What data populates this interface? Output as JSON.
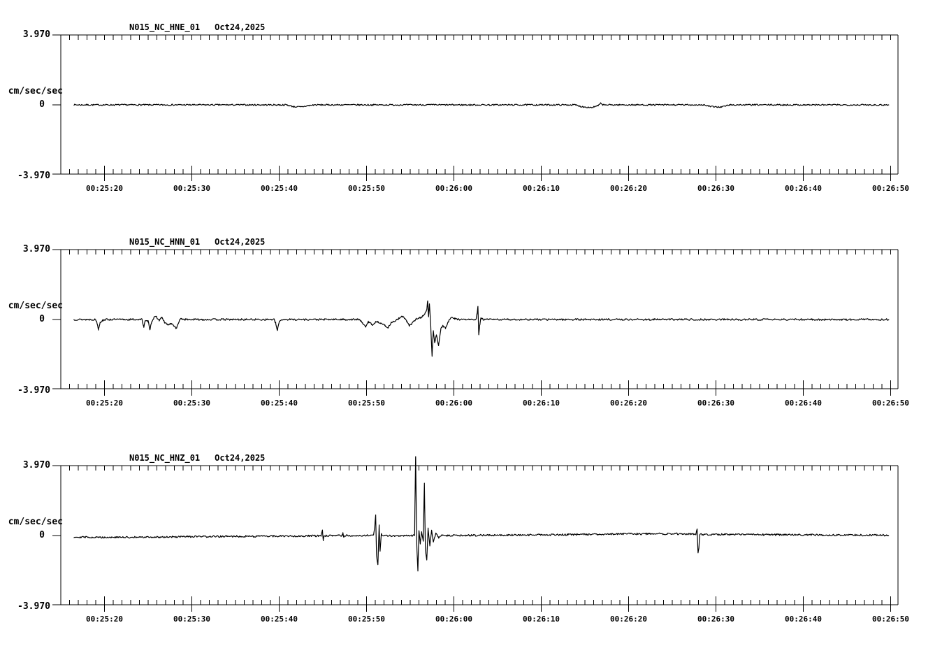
{
  "app": {
    "background": "#ffffff",
    "ink": "#000000"
  },
  "chart_data": {
    "type": "line",
    "kind": "seismogram-strip-chart",
    "station": "N015_NC",
    "date": "Oct24,2025",
    "ylabel": "cm/sec/sec",
    "ylim": [
      -3.97,
      3.97
    ],
    "y_tick_labels": {
      "max": "3.970",
      "zero": "0",
      "min": "-3.970"
    },
    "x_tick_labels": [
      "00:25:20",
      "00:25:30",
      "00:25:40",
      "00:25:50",
      "00:26:00",
      "00:26:10",
      "00:26:20",
      "00:26:30",
      "00:26:40",
      "00:26:50"
    ],
    "x_axis": {
      "start_time": "00:25:15",
      "end_time": "00:26:51",
      "minor_tick_sec": 1,
      "major_tick_sec": 10
    },
    "legend": "none",
    "grid": "off",
    "panels": [
      {
        "channel": "N015_NC_HNE_01",
        "date": "Oct24,2025",
        "units": "cm/sec/sec",
        "noise_amp": 0.04,
        "seed": 7,
        "trace_breakpoints": [
          [
            1.5,
            0
          ],
          [
            25.9,
            0
          ],
          [
            26.6,
            -0.1
          ],
          [
            27.5,
            -0.12
          ],
          [
            28.3,
            -0.05
          ],
          [
            29.0,
            0
          ],
          [
            58.9,
            0
          ],
          [
            59.6,
            -0.1
          ],
          [
            60.8,
            -0.15
          ],
          [
            61.5,
            -0.05
          ],
          [
            61.8,
            0.08
          ],
          [
            62.1,
            0
          ],
          [
            73.6,
            0
          ],
          [
            74.4,
            -0.1
          ],
          [
            75.6,
            -0.12
          ],
          [
            76.6,
            0
          ],
          [
            94.8,
            0
          ]
        ]
      },
      {
        "channel": "N015_NC_HNN_01",
        "date": "Oct24,2025",
        "units": "cm/sec/sec",
        "noise_amp": 0.05,
        "seed": 13,
        "trace_breakpoints": [
          [
            1.5,
            0
          ],
          [
            3.9,
            0
          ],
          [
            4.1,
            -0.1
          ],
          [
            4.3,
            -0.55
          ],
          [
            4.5,
            -0.15
          ],
          [
            4.8,
            -0.05
          ],
          [
            5.1,
            0
          ],
          [
            9.3,
            0
          ],
          [
            9.5,
            -0.42
          ],
          [
            9.65,
            -0.1
          ],
          [
            10.0,
            -0.1
          ],
          [
            10.2,
            -0.55
          ],
          [
            10.4,
            -0.12
          ],
          [
            10.65,
            0.1
          ],
          [
            10.95,
            0.15
          ],
          [
            11.25,
            -0.05
          ],
          [
            11.55,
            0.12
          ],
          [
            11.85,
            -0.15
          ],
          [
            12.25,
            -0.3
          ],
          [
            12.65,
            -0.25
          ],
          [
            12.95,
            -0.35
          ],
          [
            13.2,
            -0.5
          ],
          [
            13.4,
            -0.3
          ],
          [
            13.55,
            -0.08
          ],
          [
            13.8,
            0.05
          ],
          [
            14.2,
            0
          ],
          [
            24.4,
            0
          ],
          [
            24.6,
            -0.2
          ],
          [
            24.8,
            -0.65
          ],
          [
            25.0,
            -0.12
          ],
          [
            25.3,
            0
          ],
          [
            34.1,
            0
          ],
          [
            34.5,
            -0.15
          ],
          [
            34.9,
            -0.45
          ],
          [
            35.2,
            -0.12
          ],
          [
            35.7,
            -0.3
          ],
          [
            36.1,
            -0.12
          ],
          [
            36.6,
            -0.18
          ],
          [
            37.1,
            -0.35
          ],
          [
            37.5,
            -0.45
          ],
          [
            37.8,
            -0.18
          ],
          [
            38.2,
            -0.1
          ],
          [
            38.7,
            0.05
          ],
          [
            39.2,
            0.2
          ],
          [
            39.6,
            -0.1
          ],
          [
            39.9,
            -0.35
          ],
          [
            40.3,
            -0.18
          ],
          [
            40.7,
            0.05
          ],
          [
            41.2,
            0.1
          ],
          [
            41.6,
            0.28
          ],
          [
            41.9,
            0.55
          ],
          [
            42.0,
            1.05
          ],
          [
            42.1,
            0.15
          ],
          [
            42.2,
            0.9
          ],
          [
            42.35,
            -0.3
          ],
          [
            42.5,
            -2.05
          ],
          [
            42.65,
            -0.6
          ],
          [
            42.8,
            -1.3
          ],
          [
            43.0,
            -0.9
          ],
          [
            43.25,
            -1.45
          ],
          [
            43.5,
            -0.55
          ],
          [
            43.75,
            -0.35
          ],
          [
            44.05,
            -0.5
          ],
          [
            44.35,
            -0.15
          ],
          [
            44.65,
            0.1
          ],
          [
            45.1,
            0.05
          ],
          [
            45.7,
            0
          ],
          [
            47.55,
            0
          ],
          [
            47.65,
            0.3
          ],
          [
            47.75,
            0.7
          ],
          [
            47.85,
            -0.85
          ],
          [
            47.95,
            -0.35
          ],
          [
            48.1,
            0.08
          ],
          [
            48.35,
            0
          ],
          [
            94.8,
            0
          ]
        ]
      },
      {
        "channel": "N015_NC_HNZ_01",
        "date": "Oct24,2025",
        "units": "cm/sec/sec",
        "noise_amp": 0.05,
        "seed": 29,
        "trace_breakpoints": [
          [
            1.5,
            -0.08
          ],
          [
            4,
            -0.1
          ],
          [
            9,
            -0.1
          ],
          [
            14,
            -0.07
          ],
          [
            19,
            -0.05
          ],
          [
            26,
            -0.03
          ],
          [
            29.8,
            -0.02
          ],
          [
            29.95,
            0.3
          ],
          [
            30.05,
            -0.28
          ],
          [
            30.15,
            -0.02
          ],
          [
            32.2,
            0
          ],
          [
            32.3,
            0.12
          ],
          [
            32.4,
            -0.1
          ],
          [
            32.5,
            0
          ],
          [
            35.8,
            0
          ],
          [
            35.95,
            0.5
          ],
          [
            36.05,
            1.2
          ],
          [
            36.15,
            -1.1
          ],
          [
            36.3,
            -1.7
          ],
          [
            36.45,
            0.6
          ],
          [
            36.55,
            -0.9
          ],
          [
            36.7,
            0.1
          ],
          [
            36.9,
            -0.02
          ],
          [
            40.5,
            0
          ],
          [
            40.62,
            4.45
          ],
          [
            40.75,
            -0.5
          ],
          [
            40.88,
            -2.0
          ],
          [
            41.0,
            0.3
          ],
          [
            41.15,
            -0.45
          ],
          [
            41.3,
            0.2
          ],
          [
            41.5,
            -0.3
          ],
          [
            41.62,
            3.0
          ],
          [
            41.75,
            -0.9
          ],
          [
            41.9,
            -1.35
          ],
          [
            42.05,
            0.4
          ],
          [
            42.25,
            -0.6
          ],
          [
            42.45,
            0.3
          ],
          [
            42.65,
            -0.35
          ],
          [
            42.95,
            0.15
          ],
          [
            43.25,
            -0.12
          ],
          [
            43.65,
            0.05
          ],
          [
            44.2,
            0
          ],
          [
            50,
            0.02
          ],
          [
            58,
            0.05
          ],
          [
            64,
            0.09
          ],
          [
            70,
            0.1
          ],
          [
            72.7,
            0.08
          ],
          [
            72.85,
            0.35
          ],
          [
            72.95,
            -1.0
          ],
          [
            73.05,
            -0.7
          ],
          [
            73.15,
            0.06
          ],
          [
            76,
            0.06
          ],
          [
            82,
            0.05
          ],
          [
            88,
            0.03
          ],
          [
            94.8,
            0.02
          ]
        ]
      }
    ]
  }
}
